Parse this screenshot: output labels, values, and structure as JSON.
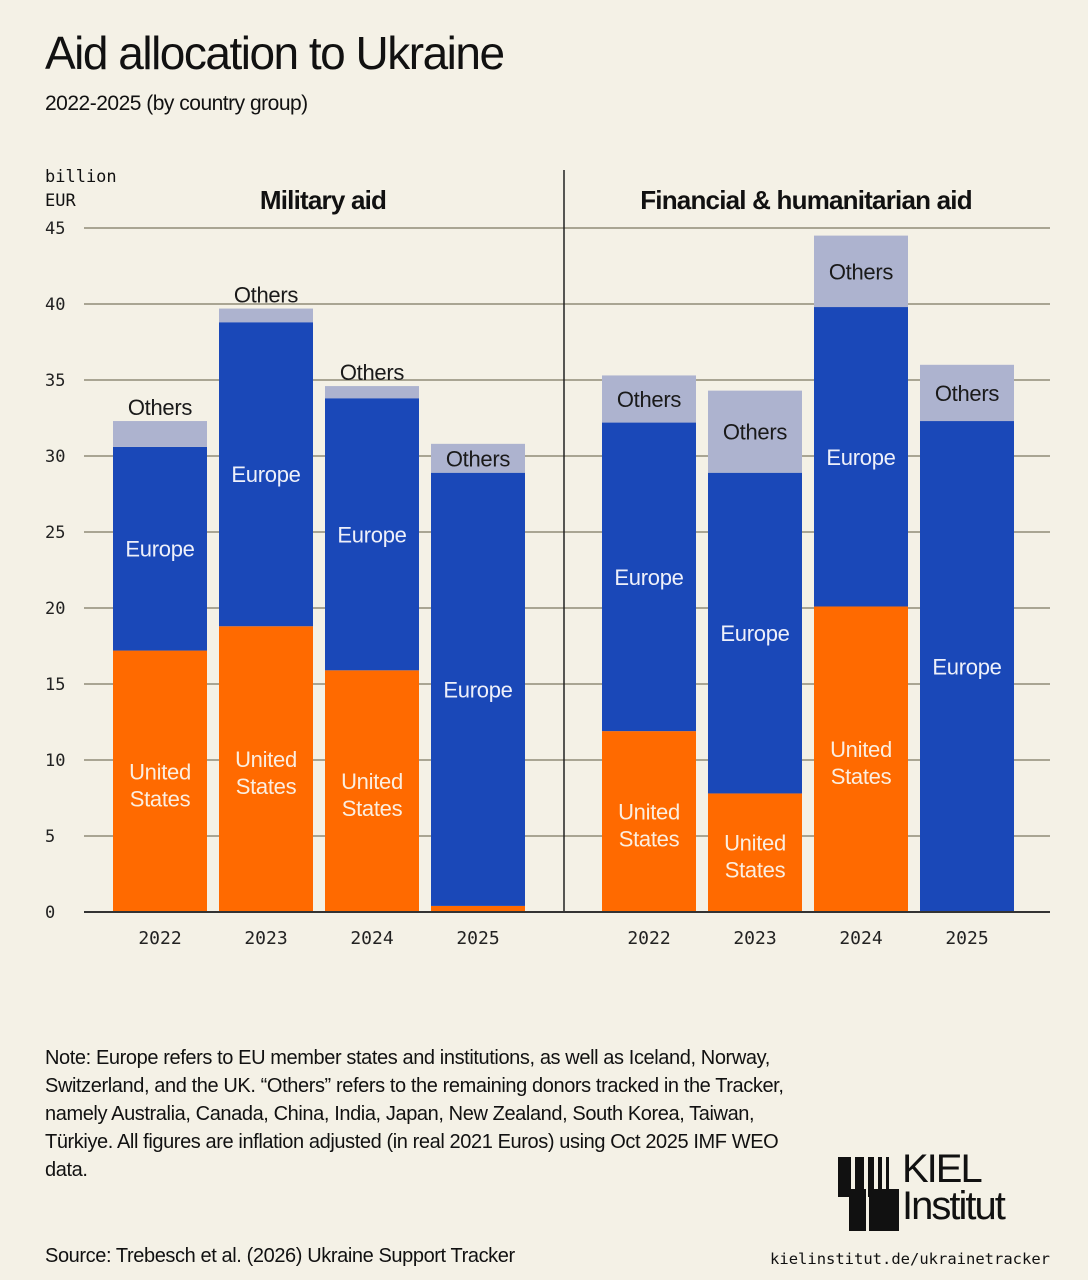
{
  "header": {
    "title": "Aid allocation to Ukraine",
    "subtitle": "2022-2025 (by country group)"
  },
  "axis_unit": "billion\nEUR",
  "colors": {
    "United States": "#ff6a00",
    "Europe": "#1a48b8",
    "Others": "#adb3cf",
    "background": "#f4f1e6",
    "gridline": "#a9a593"
  },
  "chart_data": [
    {
      "type": "bar",
      "stacked": true,
      "title": "Military aid",
      "xlabel": "",
      "ylabel": "billion EUR",
      "ylim": [
        0,
        45
      ],
      "yticks": [
        0,
        5,
        10,
        15,
        20,
        25,
        30,
        35,
        40,
        45
      ],
      "grid": true,
      "categories": [
        "2022",
        "2023",
        "2024",
        "2025"
      ],
      "series": [
        {
          "name": "United States",
          "label": "United States",
          "values": [
            17.2,
            18.8,
            15.9,
            0.4
          ]
        },
        {
          "name": "Europe",
          "label": "Europe",
          "values": [
            13.4,
            20.0,
            17.9,
            28.5
          ]
        },
        {
          "name": "Others",
          "label": "Others",
          "values": [
            1.7,
            0.9,
            0.8,
            1.9
          ]
        }
      ]
    },
    {
      "type": "bar",
      "stacked": true,
      "title": "Financial & humanitarian aid",
      "xlabel": "",
      "ylabel": "billion EUR",
      "ylim": [
        0,
        45
      ],
      "yticks": [
        0,
        5,
        10,
        15,
        20,
        25,
        30,
        35,
        40,
        45
      ],
      "grid": true,
      "categories": [
        "2022",
        "2023",
        "2024",
        "2025"
      ],
      "series": [
        {
          "name": "United States",
          "label": "United States",
          "values": [
            11.9,
            7.8,
            20.1,
            0.0
          ]
        },
        {
          "name": "Europe",
          "label": "Europe",
          "values": [
            20.3,
            21.1,
            19.7,
            32.3
          ]
        },
        {
          "name": "Others",
          "label": "Others",
          "values": [
            3.1,
            5.4,
            4.7,
            3.7
          ]
        }
      ]
    }
  ],
  "footer": {
    "note": "Note: Europe refers to EU member states and institutions, as well as Iceland, Norway, Switzerland, and the UK. “Others” refers to the remaining donors tracked in the Tracker, namely Australia, Canada, China, India, Japan, New Zealand, South Korea, Taiwan, Türkiye. All figures are inflation adjusted (in real 2021 Euros) using Oct 2025 IMF WEO data.",
    "source": "Source: Trebesch et al. (2026) Ukraine Support Tracker",
    "url": "kielinstitut.de/ukrainetracker",
    "logo_line1": "KIEL",
    "logo_line2": "Institut"
  }
}
